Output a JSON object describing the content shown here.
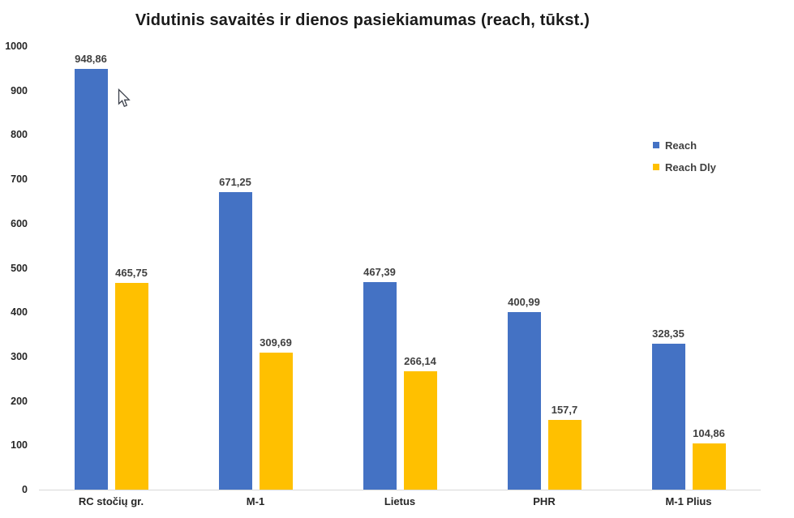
{
  "title": "Vidutinis savaitės ir dienos pasiekiamumas (reach, tūkst.)",
  "chart_data": {
    "type": "bar",
    "title": "Vidutinis savaitės ir dienos pasiekiamumas (reach, tūkst.)",
    "categories": [
      "RC stočių gr.",
      "M-1",
      "Lietus",
      "PHR",
      "M-1 Plius"
    ],
    "series": [
      {
        "name": "Reach",
        "color": "#4472C4",
        "values": [
          948.86,
          671.25,
          467.39,
          400.99,
          328.35
        ],
        "labels": [
          "948,86",
          "671,25",
          "467,39",
          "400,99",
          "328,35"
        ]
      },
      {
        "name": "Reach Dly",
        "color": "#FFC000",
        "values": [
          465.75,
          309.69,
          266.14,
          157.7,
          104.86
        ],
        "labels": [
          "465,75",
          "309,69",
          "266,14",
          "157,7",
          "104,86"
        ]
      }
    ],
    "xlabel": "",
    "ylabel": "",
    "ylim": [
      0,
      1000
    ],
    "ytick_step": 100,
    "grid": false,
    "legend_position": "right",
    "axis_line_color": "#D9D9D9",
    "data_label_color": "#404040"
  },
  "legend": {
    "items": [
      {
        "label": "Reach",
        "color": "#4472C4"
      },
      {
        "label": "Reach Dly",
        "color": "#FFC000"
      }
    ]
  },
  "cursor": {
    "present": true,
    "type": "arrow"
  }
}
